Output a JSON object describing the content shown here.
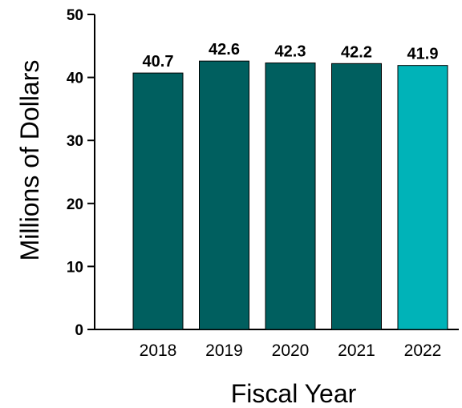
{
  "chart_data": {
    "type": "bar",
    "categories": [
      "2018",
      "2019",
      "2020",
      "2021",
      "2022"
    ],
    "values": [
      40.7,
      42.6,
      42.3,
      42.2,
      41.9
    ],
    "value_labels": [
      "40.7",
      "42.6",
      "42.3",
      "42.2",
      "41.9"
    ],
    "title": "",
    "xlabel": "Fiscal Year",
    "ylabel": "Millions of Dollars",
    "ylim": [
      0,
      50
    ],
    "yticks": [
      "0",
      "10",
      "20",
      "30",
      "40",
      "50"
    ],
    "grid": false,
    "colors": [
      "#005f5f",
      "#005f5f",
      "#005f5f",
      "#005f5f",
      "#00b3b8"
    ],
    "bar_outline_color": "#000000"
  }
}
